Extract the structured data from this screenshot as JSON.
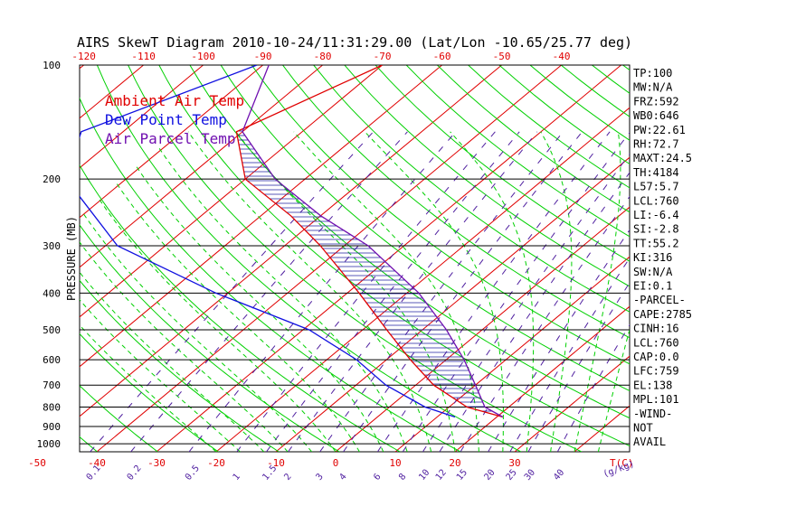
{
  "chart_data": {
    "type": "skewt",
    "title": "AIRS SkewT Diagram 2010-10-24/11:31:29.00 (Lat/Lon -10.65/25.77 deg)",
    "ylabel": "PRESSURE (MB)",
    "pressure_ticks": [
      "100",
      "200",
      "300",
      "400",
      "500",
      "600",
      "700",
      "800",
      "900",
      "1000"
    ],
    "pressure_levels": [
      100,
      200,
      300,
      400,
      500,
      600,
      700,
      800,
      900,
      1000
    ],
    "top_axis_ticks": [
      "-120",
      "-110",
      "-100",
      "-90",
      "-80",
      "-70",
      "-60",
      "-50",
      "-40"
    ],
    "bottom_axis_ticks": [
      "-50",
      "-40",
      "-30",
      "-20",
      "-10",
      "0",
      "10",
      "20",
      "30"
    ],
    "bottom_axis_unit": "T(C)",
    "mixing_ratio_labels": [
      "0.1",
      "0.2",
      "0.5",
      "1",
      "1.5",
      "2",
      "3",
      "4",
      "6",
      "8",
      "10",
      "12",
      "15",
      "20",
      "25",
      "30",
      "40"
    ],
    "mixing_ratio_unit": "(g/kg)",
    "legend": [
      {
        "label": "Ambient Air Temp",
        "color": "#e00000"
      },
      {
        "label": "Dew Point Temp",
        "color": "#1010e0"
      },
      {
        "label": "Air Parcel Temp",
        "color": "#7010b0"
      }
    ],
    "series": [
      {
        "name": "Ambient Air Temp",
        "color": "#e00000",
        "points": [
          [
            100,
            -70
          ],
          [
            150,
            -81
          ],
          [
            200,
            -70
          ],
          [
            250,
            -55
          ],
          [
            300,
            -44
          ],
          [
            400,
            -28
          ],
          [
            500,
            -16
          ],
          [
            600,
            -6
          ],
          [
            700,
            3
          ],
          [
            800,
            13
          ],
          [
            850,
            21
          ]
        ]
      },
      {
        "name": "Dew Point Temp",
        "color": "#1010e0",
        "points": [
          [
            100,
            -91
          ],
          [
            150,
            -107
          ],
          [
            200,
            -100
          ],
          [
            300,
            -78
          ],
          [
            400,
            -52
          ],
          [
            500,
            -29
          ],
          [
            600,
            -15
          ],
          [
            700,
            -5
          ],
          [
            800,
            6
          ],
          [
            850,
            13
          ]
        ]
      },
      {
        "name": "Air Parcel Temp",
        "color": "#7010b0",
        "points": [
          [
            100,
            -89
          ],
          [
            150,
            -80
          ],
          [
            200,
            -65
          ],
          [
            250,
            -50
          ],
          [
            300,
            -36
          ],
          [
            400,
            -18
          ],
          [
            500,
            -6
          ],
          [
            600,
            3
          ],
          [
            700,
            10
          ],
          [
            800,
            16
          ],
          [
            850,
            21
          ]
        ]
      }
    ],
    "stats": [
      "TP:100",
      "MW:N/A",
      "FRZ:592",
      "WB0:646",
      "PW:22.61",
      "RH:72.7",
      "MAXT:24.5",
      "TH:4184",
      "L57:5.7",
      "LCL:760",
      "LI:-6.4",
      "SI:-2.8",
      "TT:55.2",
      "KI:316",
      "SW:N/A",
      "EI:0.1",
      "-PARCEL-",
      "CAPE:2785",
      "CINH:16",
      "LCL:760",
      "CAP:0.0",
      "LFC:759",
      "EL:138",
      "MPL:101",
      "-WIND-",
      "NOT",
      "AVAIL"
    ],
    "grid": true,
    "colors": {
      "isotherm": "#e00000",
      "dry_adiabat": "#00d000",
      "moist_adiabat": "#00d000",
      "mixing_ratio": "#5020a0",
      "isobar": "#000000",
      "cape_hatch": "#2020a0"
    }
  }
}
